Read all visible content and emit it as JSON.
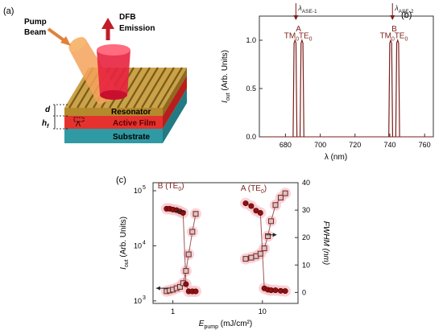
{
  "panel_a": {
    "tag": "(a)",
    "pump_label_1": "Pump",
    "pump_label_2": "Beam",
    "emission_label_1": "DFB",
    "emission_label_2": "Emission",
    "d_label": "d",
    "hf_label_main": "h",
    "hf_label_sub": "f",
    "lambda_label": "Λ",
    "resonator_label": "Resonator",
    "active_label": "Active Film",
    "substrate_label": "Substrate",
    "colors": {
      "pump": "#e0823a",
      "emission": "#d81e3c",
      "active": "#e5322e",
      "substrate": "#2f9aa3",
      "grating": "#b48a2c"
    }
  },
  "chart_data": [
    {
      "id": "b",
      "type": "line",
      "tag": "(b)",
      "xlabel": "λ (nm)",
      "ylabel_main": "I",
      "ylabel_sub": "out",
      "ylabel_rest": " (Arb. Units)",
      "xlim": [
        665,
        765
      ],
      "ylim": [
        0,
        1.25
      ],
      "x_ticks": [
        680,
        700,
        720,
        740,
        760
      ],
      "y_ticks": [
        "0.0",
        "0.5",
        "1.0"
      ],
      "y_tick_values": [
        0.0,
        0.5,
        1.0
      ],
      "peaks": [
        {
          "center": 685.5,
          "height": 1.0
        },
        {
          "center": 689.5,
          "height": 1.0
        },
        {
          "center": 740.5,
          "height": 1.0
        },
        {
          "center": 744.5,
          "height": 1.0
        }
      ],
      "peak_halfwidth_nm": 1.1,
      "peak_labels": [
        {
          "text": "TM",
          "sub": "0",
          "x": 683.5
        },
        {
          "text": "TE",
          "sub": "0",
          "x": 691.5
        },
        {
          "text": "TM",
          "sub": "0",
          "x": 738.5
        },
        {
          "text": "TE",
          "sub": "0",
          "x": 746.5
        }
      ],
      "group_labels": [
        {
          "text": "A",
          "x": 687.5
        },
        {
          "text": "B",
          "x": 742.5
        }
      ],
      "arrow_labels": [
        {
          "main": "λ",
          "sub": "ASE-1",
          "x": 686
        },
        {
          "main": "λ",
          "sub": "ASE-2",
          "x": 741.5
        }
      ],
      "line_color": "#7a1f1a"
    },
    {
      "id": "c",
      "type": "scatter",
      "tag": "(c)",
      "xlabel_main": "E",
      "xlabel_sub": "pump",
      "xlabel_rest": " (mJ/cm²)",
      "ylabel_main": "I",
      "ylabel_sub": "out",
      "ylabel_rest": " (Arb. Units)",
      "y2label": "FWHM (nm)",
      "xscale": "log",
      "xlim": [
        0.6,
        25
      ],
      "x_ticks": [
        "1",
        "10"
      ],
      "x_tick_values": [
        1,
        10
      ],
      "yscale": "log",
      "ylim_left": [
        900,
        140000
      ],
      "y_left_ticks_base": "10",
      "y_left_ticks_exp": [
        "3",
        "4",
        "5"
      ],
      "y_left_tick_values": [
        1000,
        10000,
        100000
      ],
      "ylim_right": [
        -4,
        40
      ],
      "y_right_ticks": [
        "0",
        "10",
        "20",
        "30",
        "40"
      ],
      "y_right_tick_values": [
        0,
        10,
        20,
        30,
        40
      ],
      "series": [
        {
          "name": "B (TE0)",
          "label_main": "B (TE",
          "label_sub": "0",
          "label_end": ")",
          "intensity": {
            "x": [
              0.85,
              0.92,
              1.0,
              1.1,
              1.2,
              1.3,
              1.4,
              1.5,
              1.65,
              1.8
            ],
            "y": [
              1500,
              1550,
              1600,
              1700,
              1800,
              2100,
              3500,
              7000,
              18000,
              38000
            ]
          },
          "fwhm": {
            "x": [
              0.85,
              0.92,
              1.0,
              1.1,
              1.2,
              1.3,
              1.4,
              1.5,
              1.65,
              1.8
            ],
            "y": [
              30.5,
              30.5,
              30.2,
              30.0,
              29.5,
              29.0,
              3.0,
              0.4,
              0.4,
              0.4
            ]
          }
        },
        {
          "name": "A (TE0)",
          "label_main": "A (TE",
          "label_sub": "0",
          "label_end": ")",
          "intensity": {
            "x": [
              6.5,
              7.5,
              8.5,
              9.5,
              10.5,
              11.5,
              12.5,
              14,
              16,
              18
            ],
            "y": [
              5800,
              6100,
              6500,
              7200,
              9000,
              15000,
              28000,
              55000,
              75000,
              90000
            ]
          },
          "fwhm": {
            "x": [
              6.5,
              7.5,
              8.5,
              9.5,
              10.5,
              11.5,
              12.5,
              14,
              16,
              18
            ],
            "y": [
              32.5,
              31.5,
              29.8,
              29.0,
              1.5,
              1.0,
              0.8,
              0.8,
              0.6,
              0.5
            ]
          }
        }
      ],
      "colors": {
        "marker_fill": "#d5c5c5",
        "marker_edge": "#7a1f1a",
        "fwhm_fill": "#8e1010",
        "glow": "#f7c3cb",
        "fit": "#9a5a5a"
      }
    }
  ]
}
